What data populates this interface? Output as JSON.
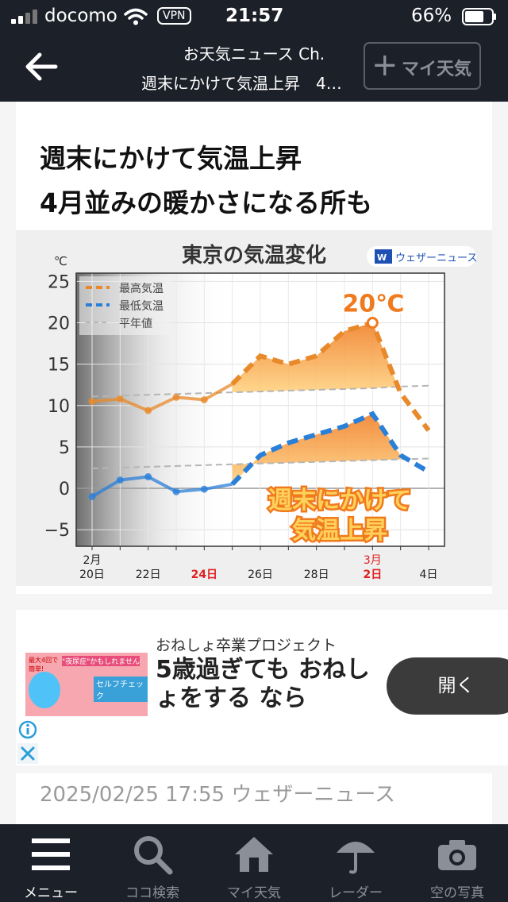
{
  "status_bar": {
    "carrier": "docomo",
    "vpn": "VPN",
    "time": "21:57",
    "battery": "66%"
  },
  "nav": {
    "title_line1": "お天気ニュース Ch.",
    "title_line2": "週末にかけて気温上昇　4…",
    "fav_plus": "+",
    "fav_label": "マイ天気"
  },
  "article": {
    "headline_line1": "週末にかけて気温上昇",
    "headline_line2": "4月並みの暖かさになる所も",
    "date": "2025/02/25 17:55 ウェザーニュース"
  },
  "chart_data": {
    "type": "line",
    "title": "東京の気温変化",
    "brand": "ウェザーニュース",
    "unit": "℃",
    "x": [
      "2/20",
      "2/21",
      "2/22",
      "2/23",
      "2/24",
      "2/25",
      "2/26",
      "2/27",
      "2/28",
      "3/1",
      "3/2",
      "3/3",
      "3/4"
    ],
    "x_tick_labels": [
      {
        "line1": "2月",
        "line2": "20日",
        "color": "#222"
      },
      {
        "line1": "",
        "line2": "22日",
        "color": "#222"
      },
      {
        "line1": "",
        "line2": "24日",
        "color": "#e02020"
      },
      {
        "line1": "",
        "line2": "26日",
        "color": "#222"
      },
      {
        "line1": "",
        "line2": "28日",
        "color": "#222"
      },
      {
        "line1": "3月",
        "line2": "2日",
        "color": "#e02020"
      },
      {
        "line1": "",
        "line2": "4日",
        "color": "#222"
      }
    ],
    "y_ticks": [
      "25",
      "20",
      "15",
      "10",
      "5",
      "0",
      "−5"
    ],
    "ylim": [
      -7,
      26
    ],
    "forecast_from_index": 5,
    "series": [
      {
        "name": "最高気温",
        "color": "#e8892a",
        "values": [
          10.5,
          10.8,
          9.4,
          11.0,
          10.7,
          12.6,
          16.0,
          15.0,
          16.0,
          19.0,
          20.0,
          11.5,
          7.0
        ]
      },
      {
        "name": "最低気温",
        "color": "#2a7fd8",
        "values": [
          -1.0,
          1.0,
          1.4,
          -0.4,
          -0.1,
          0.5,
          4.0,
          5.5,
          6.5,
          7.5,
          9.0,
          4.0,
          2.0
        ]
      },
      {
        "name": "平年値",
        "color": "#b5b5b5",
        "values_high": [
          11.1,
          11.2,
          11.3,
          11.4,
          11.5,
          11.6,
          11.7,
          11.8,
          11.9,
          12.0,
          12.1,
          12.3,
          12.4
        ],
        "values_low": [
          2.4,
          2.5,
          2.6,
          2.7,
          2.8,
          2.9,
          3.0,
          3.1,
          3.2,
          3.3,
          3.4,
          3.5,
          3.6
        ]
      }
    ],
    "annotations": {
      "peak_label": "20℃",
      "callout_line1": "週末にかけて",
      "callout_line2": "気温上昇"
    }
  },
  "ad": {
    "image_text_a": "最大4回で簡単!",
    "image_text_b": "\"夜尿症\"かもしれません",
    "image_text_c": "セルフチェック",
    "sponsor": "おねしょ卒業プロジェクト",
    "body": "5歳過ぎても おねしょをする なら",
    "cta": "開く"
  },
  "tabs": [
    {
      "label": "メニュー",
      "icon": "menu-icon"
    },
    {
      "label": "ココ検索",
      "icon": "search-icon"
    },
    {
      "label": "マイ天気",
      "icon": "home-icon"
    },
    {
      "label": "レーダー",
      "icon": "umbrella-icon"
    },
    {
      "label": "空の写真",
      "icon": "camera-icon"
    }
  ]
}
